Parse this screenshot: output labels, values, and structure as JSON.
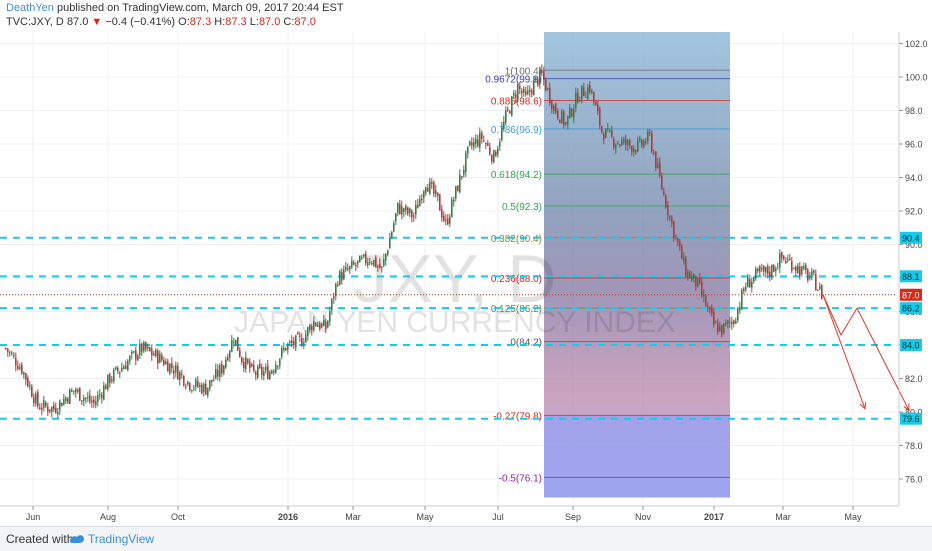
{
  "header": {
    "author": "DeathYen",
    "published": "published on TradingView.com, March 09, 2017 20:44 EST",
    "symbol": "TVC:JXY, D",
    "last": "87.0",
    "change": "−0.4 (−0.41%)",
    "o_label": "O:",
    "o_val": "87.3",
    "h_label": "H:",
    "h_val": "87.3",
    "l_label": "L:",
    "l_val": "87.0",
    "c_label": "C:",
    "c_val": "87.0"
  },
  "footer": {
    "created": "Created with",
    "brand": "TradingView"
  },
  "colors": {
    "cyan_line": "#18c9e8",
    "bull": "#3a7d44",
    "bear": "#b23a3a",
    "fib_top": "#6aa0c8",
    "fib_bottom": "#7a86e0",
    "arrow": "#e5332a",
    "price_tag": "#d9281a"
  },
  "chart_data": {
    "type": "candlestick",
    "title": "TVC:JXY, D",
    "watermark_symbol": "JXY, D",
    "watermark_name": "JAPAN YEN CURRENCY INDEX",
    "x_ticks": [
      "Jun",
      "Aug",
      "Oct",
      "2016",
      "Mar",
      "May",
      "Jul",
      "Sep",
      "Nov",
      "2017",
      "Mar",
      "May"
    ],
    "y_ticks": [
      76.0,
      78.0,
      80.0,
      82.0,
      84.0,
      86.0,
      88.0,
      90.0,
      92.0,
      94.0,
      96.0,
      98.0,
      100.0,
      102.0
    ],
    "ylim": [
      74.5,
      103
    ],
    "price_path": [
      [
        0,
        83.8
      ],
      [
        8,
        82.6
      ],
      [
        16,
        80.4
      ],
      [
        24,
        80.2
      ],
      [
        34,
        81.3
      ],
      [
        44,
        80.5
      ],
      [
        52,
        82.0
      ],
      [
        60,
        82.9
      ],
      [
        68,
        83.8
      ],
      [
        76,
        83.3
      ],
      [
        84,
        82.6
      ],
      [
        92,
        81.7
      ],
      [
        100,
        81.4
      ],
      [
        108,
        82.6
      ],
      [
        114,
        84.5
      ],
      [
        118,
        83.2
      ],
      [
        124,
        82.3
      ],
      [
        132,
        82.4
      ],
      [
        140,
        83.9
      ],
      [
        148,
        84.3
      ],
      [
        154,
        85.4
      ],
      [
        160,
        85.0
      ],
      [
        166,
        88.0
      ],
      [
        174,
        88.7
      ],
      [
        182,
        89.2
      ],
      [
        188,
        88.5
      ],
      [
        196,
        92.2
      ],
      [
        204,
        91.7
      ],
      [
        210,
        93.8
      ],
      [
        216,
        92.6
      ],
      [
        220,
        91.2
      ],
      [
        226,
        93.5
      ],
      [
        232,
        95.8
      ],
      [
        238,
        96.4
      ],
      [
        244,
        95.2
      ],
      [
        250,
        97.6
      ],
      [
        256,
        99.4
      ],
      [
        260,
        98.7
      ],
      [
        264,
        99.6
      ],
      [
        268,
        100.1
      ],
      [
        274,
        98.2
      ],
      [
        280,
        97.2
      ],
      [
        286,
        98.9
      ],
      [
        292,
        99.4
      ],
      [
        298,
        96.8
      ],
      [
        304,
        96.2
      ],
      [
        310,
        96.0
      ],
      [
        316,
        95.8
      ],
      [
        322,
        96.4
      ],
      [
        328,
        93.4
      ],
      [
        334,
        90.8
      ],
      [
        340,
        88.4
      ],
      [
        346,
        87.6
      ],
      [
        350,
        86.4
      ],
      [
        354,
        85.2
      ],
      [
        358,
        84.9
      ],
      [
        364,
        85.5
      ],
      [
        370,
        87.6
      ],
      [
        376,
        88.2
      ],
      [
        382,
        88.4
      ],
      [
        388,
        89.2
      ],
      [
        394,
        88.8
      ],
      [
        398,
        88.4
      ],
      [
        404,
        87.9
      ],
      [
        408,
        87.0
      ]
    ],
    "fib_levels": [
      {
        "label": "1(100.4)",
        "value": 100.4,
        "color": "#6b6b6b"
      },
      {
        "label": "0.9672(99.9)",
        "value": 99.9,
        "color": "#3a3ab0"
      },
      {
        "label": "0.886(98.6)",
        "value": 98.6,
        "color": "#d9281a"
      },
      {
        "label": "0.786(96.9)",
        "value": 96.9,
        "color": "#3a9ad9"
      },
      {
        "label": "0.618(94.2)",
        "value": 94.2,
        "color": "#2aa84a"
      },
      {
        "label": "0.5(92.3)",
        "value": 92.3,
        "color": "#2aa84a"
      },
      {
        "label": "0.382(90.4)",
        "value": 90.4,
        "color": "#8a8a2a"
      },
      {
        "label": "0.236(88.0)",
        "value": 88.0,
        "color": "#d9281a"
      },
      {
        "label": "0.125(86.2)",
        "value": 86.2,
        "color": "#5a8a4a"
      },
      {
        "label": "0(84.2)",
        "value": 84.2,
        "color": "#555555"
      },
      {
        "label": "-0.27(79.8)",
        "value": 79.8,
        "color": "#d9281a"
      },
      {
        "label": "-0.5(76.1)",
        "value": 76.1,
        "color": "#a020a0"
      }
    ],
    "horizontal_levels": [
      90.4,
      88.1,
      86.2,
      84.0,
      79.6
    ],
    "price_tags": [
      {
        "label": "90.4",
        "value": 90.4
      },
      {
        "label": "88.1",
        "value": 88.1
      },
      {
        "label": "87.0",
        "value": 87.0
      },
      {
        "label": "86.2",
        "value": 86.2
      },
      {
        "label": "84.0",
        "value": 84.0
      },
      {
        "label": "79.6",
        "value": 79.6
      }
    ],
    "current_price": 87.0,
    "projection_arrows": [
      [
        [
          409,
          87.0
        ],
        [
          418,
          84.6
        ],
        [
          426,
          86.2
        ],
        [
          452,
          80.1
        ]
      ],
      [
        [
          409,
          87.0
        ],
        [
          430,
          80.2
        ]
      ]
    ]
  }
}
